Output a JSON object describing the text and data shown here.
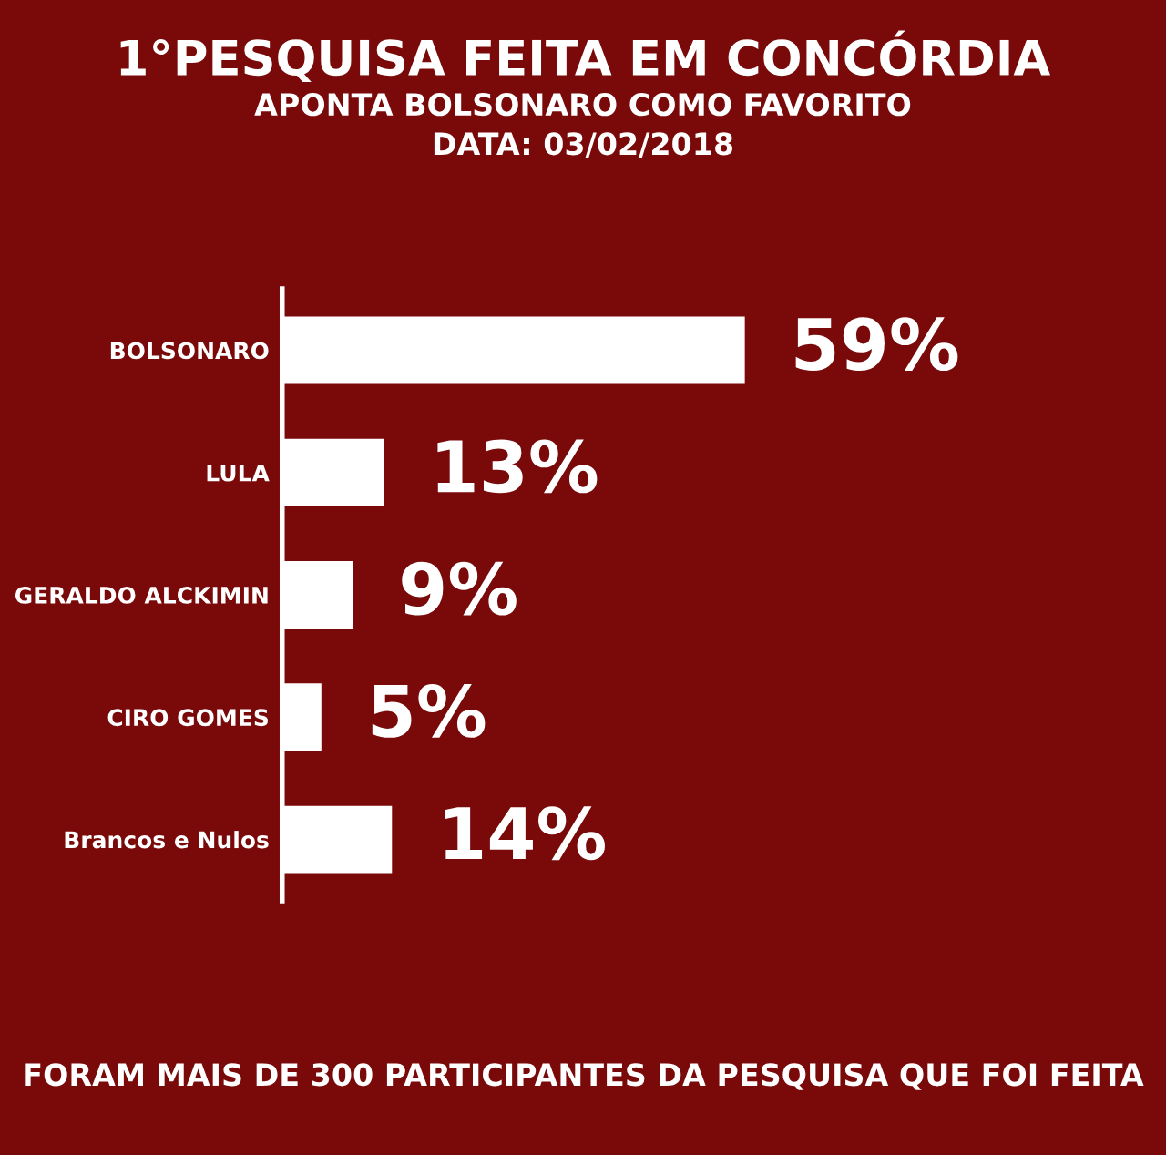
{
  "chart_data": {
    "type": "bar",
    "orientation": "horizontal",
    "title": "1°PESQUISA FEITA EM CONCÓRDIA",
    "subtitle": "APONTA BOLSONARO COMO FAVORITO",
    "annotations": [
      "DATA: 03/02/2018",
      "FORAM MAIS DE 300 PARTICIPANTES DA PESQUISA QUE FOI FEITA"
    ],
    "categories": [
      "BOLSONARO",
      "LULA",
      "GERALDO ALCKIMIN",
      "CIRO GOMES",
      "Brancos e Nulos"
    ],
    "values": [
      59,
      13,
      9,
      5,
      14
    ],
    "color": "#ffffff",
    "value_labels": [
      "59%",
      "13%",
      "9%",
      "5%",
      "14%"
    ],
    "grid": false,
    "legend": false
  }
}
